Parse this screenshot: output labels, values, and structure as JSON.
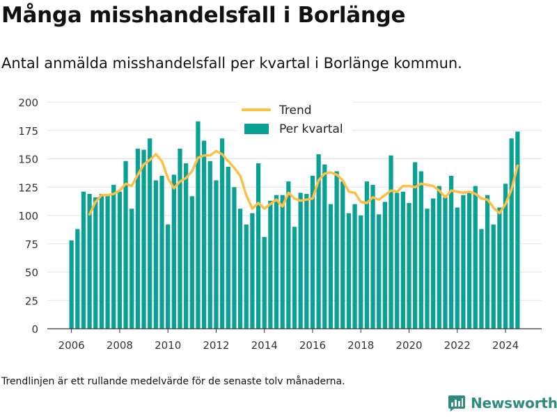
{
  "header": {
    "title": "Många misshandelsfall i Borlänge",
    "subtitle": "Antal anmälda misshandelsfall per kvartal i Borlänge kommun."
  },
  "footnote": "Trendlinjen är ett rullande medelvärde för de senaste tolv månaderna.",
  "brand": {
    "name": "Newsworthy"
  },
  "colors": {
    "bar": "#0aa195",
    "trend": "#ffbf47",
    "grid": "#e3e3e3",
    "axis": "#333333",
    "brand": "#2e8b7d"
  },
  "chart_data": {
    "type": "bar",
    "ylim": [
      0,
      200
    ],
    "yticks": [
      0,
      25,
      50,
      75,
      100,
      125,
      150,
      175,
      200
    ],
    "xlim": [
      2005.0,
      2025.5
    ],
    "xticks": [
      2006,
      2008,
      2010,
      2012,
      2014,
      2016,
      2018,
      2020,
      2022,
      2024
    ],
    "grid": true,
    "legend_position": "top-center",
    "series": [
      {
        "name": "Per kvartal",
        "type": "bar",
        "x": [
          2006.0,
          2006.25,
          2006.5,
          2006.75,
          2007.0,
          2007.25,
          2007.5,
          2007.75,
          2008.0,
          2008.25,
          2008.5,
          2008.75,
          2009.0,
          2009.25,
          2009.5,
          2009.75,
          2010.0,
          2010.25,
          2010.5,
          2010.75,
          2011.0,
          2011.25,
          2011.5,
          2011.75,
          2012.0,
          2012.25,
          2012.5,
          2012.75,
          2013.0,
          2013.25,
          2013.5,
          2013.75,
          2014.0,
          2014.25,
          2014.5,
          2014.75,
          2015.0,
          2015.25,
          2015.5,
          2015.75,
          2016.0,
          2016.25,
          2016.5,
          2016.75,
          2017.0,
          2017.25,
          2017.5,
          2017.75,
          2018.0,
          2018.25,
          2018.5,
          2018.75,
          2019.0,
          2019.25,
          2019.5,
          2019.75,
          2020.0,
          2020.25,
          2020.5,
          2020.75,
          2021.0,
          2021.25,
          2021.5,
          2021.75,
          2022.0,
          2022.25,
          2022.5,
          2022.75,
          2023.0,
          2023.25,
          2023.5,
          2023.75,
          2024.0,
          2024.25,
          2024.5
        ],
        "values": [
          78,
          88,
          121,
          119,
          116,
          119,
          118,
          127,
          121,
          148,
          106,
          159,
          158,
          168,
          131,
          135,
          92,
          136,
          159,
          146,
          117,
          183,
          166,
          148,
          131,
          168,
          143,
          125,
          106,
          92,
          102,
          146,
          81,
          113,
          118,
          118,
          130,
          90,
          120,
          119,
          135,
          154,
          145,
          110,
          139,
          130,
          102,
          110,
          100,
          130,
          127,
          101,
          112,
          153,
          120,
          121,
          111,
          147,
          139,
          106,
          115,
          126,
          116,
          135,
          107,
          118,
          120,
          126,
          88,
          118,
          92,
          107,
          128,
          168,
          174
        ]
      },
      {
        "name": "Trend",
        "type": "line",
        "x": [
          2006.75,
          2007.0,
          2007.25,
          2007.5,
          2007.75,
          2008.0,
          2008.25,
          2008.5,
          2008.75,
          2009.0,
          2009.25,
          2009.5,
          2009.75,
          2010.0,
          2010.25,
          2010.5,
          2010.75,
          2011.0,
          2011.25,
          2011.5,
          2011.75,
          2012.0,
          2012.25,
          2012.5,
          2012.75,
          2013.0,
          2013.25,
          2013.5,
          2013.75,
          2014.0,
          2014.25,
          2014.5,
          2014.75,
          2015.0,
          2015.25,
          2015.5,
          2015.75,
          2016.0,
          2016.25,
          2016.5,
          2016.75,
          2017.0,
          2017.25,
          2017.5,
          2017.75,
          2018.0,
          2018.25,
          2018.5,
          2018.75,
          2019.0,
          2019.25,
          2019.5,
          2019.75,
          2020.0,
          2020.25,
          2020.5,
          2020.75,
          2021.0,
          2021.25,
          2021.5,
          2021.75,
          2022.0,
          2022.25,
          2022.5,
          2022.75,
          2023.0,
          2023.25,
          2023.5,
          2023.75,
          2024.0,
          2024.25,
          2024.5
        ],
        "values": [
          101,
          112,
          118,
          118,
          119,
          122,
          128,
          126,
          136,
          145,
          149,
          154,
          148,
          133,
          124,
          130,
          133,
          139,
          151,
          153,
          153,
          157,
          154,
          148,
          142,
          135,
          118,
          106,
          111,
          106,
          110,
          114,
          108,
          120,
          115,
          113,
          114,
          115,
          131,
          137,
          138,
          136,
          131,
          121,
          120,
          112,
          111,
          116,
          114,
          118,
          122,
          121,
          126,
          126,
          125,
          128,
          127,
          126,
          122,
          116,
          122,
          121,
          120,
          121,
          119,
          115,
          114,
          107,
          102,
          110,
          123,
          144
        ]
      }
    ]
  }
}
